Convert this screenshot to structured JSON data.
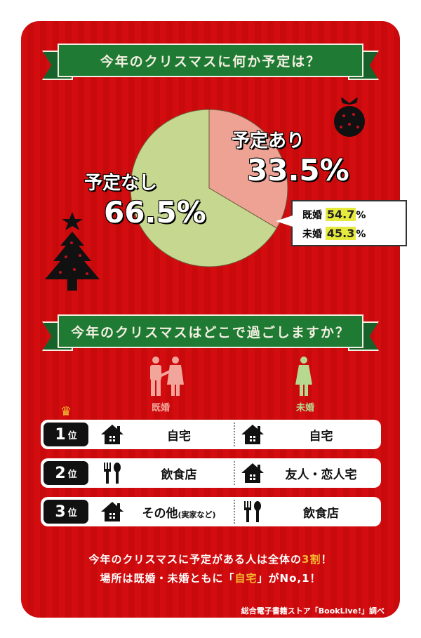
{
  "section1": {
    "title": "今年のクリスマスに何か予定は？"
  },
  "chart_data": {
    "type": "pie",
    "title": "今年のクリスマスに何か予定は？",
    "slices": [
      {
        "label": "予定あり",
        "value": 33.5,
        "display": "33.5%",
        "color": "#eea294"
      },
      {
        "label": "予定なし",
        "value": 66.5,
        "display": "66.5%",
        "color": "#c6d88f"
      }
    ],
    "breakdown": {
      "of": "予定あり",
      "items": [
        {
          "label": "既婚",
          "value": 54.7,
          "display": "54.7",
          "unit": "%"
        },
        {
          "label": "未婚",
          "value": 45.3,
          "display": "45.3",
          "unit": "%"
        }
      ]
    }
  },
  "section2": {
    "title": "今年のクリスマスはどこで過ごしますか？",
    "columns": [
      {
        "label": "既婚",
        "icon": "couple-icon",
        "color": "#f2a59a"
      },
      {
        "label": "未婚",
        "icon": "person-icon",
        "color": "#b7d98f"
      }
    ],
    "rows": [
      {
        "rank": "1",
        "rank_suffix": "位",
        "married": {
          "icon": "house-icon",
          "text": "自宅"
        },
        "single": {
          "icon": "house-icon",
          "text": "自宅"
        }
      },
      {
        "rank": "2",
        "rank_suffix": "位",
        "married": {
          "icon": "fork-spoon-icon",
          "text": "飲食店"
        },
        "single": {
          "icon": "house-icon",
          "text": "友人・恋人宅"
        }
      },
      {
        "rank": "3",
        "rank_suffix": "位",
        "married": {
          "icon": "house-icon",
          "text": "その他",
          "note": "(実家など)"
        },
        "single": {
          "icon": "fork-spoon-icon",
          "text": "飲食店"
        }
      }
    ]
  },
  "summary": {
    "line1_a": "今年のクリスマスに予定がある人は全体の",
    "line1_hl": "3割",
    "line1_b": "！",
    "line2_a": "場所は既婚・未婚ともに「",
    "line2_hl": "自宅",
    "line2_b": "」がNo,1！"
  },
  "credit": "総合電子書籍ストア「BookLive!」調べ",
  "colors": {
    "background": "#d30d0f",
    "banner": "#1f7b33",
    "highlight": "#f4b630"
  }
}
